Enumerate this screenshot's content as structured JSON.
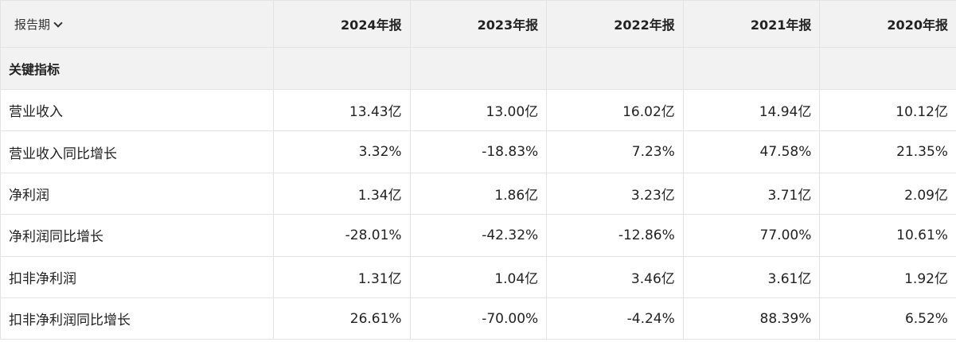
{
  "header": {
    "period_label": "报告期",
    "years": [
      "2024年报",
      "2023年报",
      "2022年报",
      "2021年报",
      "2020年报"
    ]
  },
  "section": {
    "title": "关键指标"
  },
  "rows": [
    {
      "name": "营业收入",
      "values": [
        "13.43亿",
        "13.00亿",
        "16.02亿",
        "14.94亿",
        "10.12亿"
      ]
    },
    {
      "name": "营业收入同比增长",
      "values": [
        "3.32%",
        "-18.83%",
        "7.23%",
        "47.58%",
        "21.35%"
      ]
    },
    {
      "name": "净利润",
      "values": [
        "1.34亿",
        "1.86亿",
        "3.23亿",
        "3.71亿",
        "2.09亿"
      ]
    },
    {
      "name": "净利润同比增长",
      "values": [
        "-28.01%",
        "-42.32%",
        "-12.86%",
        "77.00%",
        "10.61%"
      ]
    },
    {
      "name": "扣非净利润",
      "values": [
        "1.31亿",
        "1.04亿",
        "3.46亿",
        "3.61亿",
        "1.92亿"
      ]
    },
    {
      "name": "扣非净利润同比增长",
      "values": [
        "26.61%",
        "-70.00%",
        "-4.24%",
        "88.39%",
        "6.52%"
      ]
    }
  ],
  "icons": {
    "period_dropdown": "chevron-down-icon"
  }
}
